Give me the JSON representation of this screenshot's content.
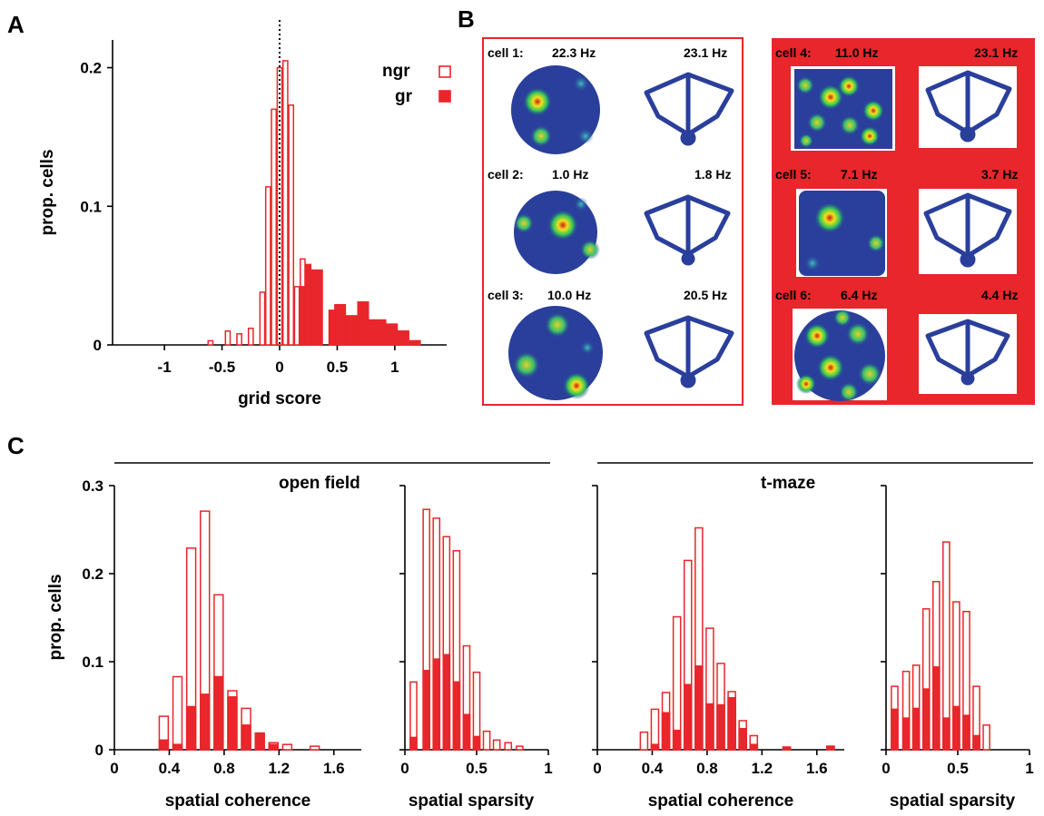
{
  "panel_labels": {
    "a": "A",
    "b": "B",
    "c": "C"
  },
  "colors": {
    "red": "#e8262b",
    "axis": "#000000",
    "map_bg": "#2a3f9b"
  },
  "chart_data": [
    {
      "id": "A",
      "type": "bar",
      "xlabel": "grid score",
      "ylabel": "prop. cells",
      "xlim": [
        -1.45,
        1.45
      ],
      "ylim": [
        0,
        0.22
      ],
      "xticks": [
        -1,
        -0.5,
        0,
        0.5,
        1
      ],
      "xtick_labels": [
        "-1",
        "-0.5",
        "0",
        "0.5",
        "1"
      ],
      "yticks": [
        0,
        0.1,
        0.2
      ],
      "ytick_labels": [
        "0",
        "0.1",
        "0.2"
      ],
      "bin_width": 0.05,
      "dotted_line_x": 0,
      "legend": {
        "placement": "top-right",
        "entries": [
          "ngr",
          "gr"
        ]
      },
      "series": [
        {
          "name": "ngr",
          "fill": "open",
          "x": [
            -0.6,
            -0.45,
            -0.35,
            -0.25,
            -0.15,
            -0.1,
            -0.05,
            0.0,
            0.05,
            0.1,
            0.15,
            0.2
          ],
          "values": [
            0.003,
            0.01,
            0.008,
            0.012,
            0.038,
            0.114,
            0.17,
            0.2,
            0.205,
            0.173,
            0.042,
            0.062
          ]
        },
        {
          "name": "gr",
          "fill": "solid",
          "x": [
            0.1,
            0.15,
            0.2,
            0.25,
            0.3,
            0.35,
            0.4,
            0.45,
            0.5,
            0.55,
            0.6,
            0.65,
            0.7,
            0.75,
            0.8,
            0.85,
            0.9,
            0.95,
            1.0,
            1.05,
            1.1,
            1.15,
            1.2
          ],
          "values": [
            0.0,
            0.0,
            0.042,
            0.058,
            0.054,
            0.054,
            0.0,
            0.025,
            0.029,
            0.029,
            0.021,
            0.021,
            0.031,
            0.031,
            0.018,
            0.018,
            0.018,
            0.015,
            0.015,
            0.01,
            0.01,
            0.003,
            0.003
          ]
        }
      ]
    },
    {
      "id": "C1",
      "type": "bar",
      "group_title": "open field",
      "xlabel": "spatial coherence",
      "ylabel": "prop. cells",
      "xlim": [
        0,
        1.8
      ],
      "ylim": [
        0,
        0.3
      ],
      "xticks": [
        0,
        0.4,
        0.8,
        1.2,
        1.6
      ],
      "xtick_labels": [
        "0",
        "0.4",
        "0.8",
        "1.2",
        "1.6"
      ],
      "yticks": [
        0,
        0.1,
        0.2,
        0.3
      ],
      "ytick_labels": [
        "0",
        "0.1",
        "0.2",
        "0.3"
      ],
      "bin_width": 0.08,
      "x": [
        0.36,
        0.46,
        0.56,
        0.66,
        0.76,
        0.86,
        0.96,
        1.06,
        1.16,
        1.26,
        1.46
      ],
      "total": [
        0.038,
        0.083,
        0.229,
        0.271,
        0.176,
        0.067,
        0.047,
        0.019,
        0.008,
        0.006,
        0.004
      ],
      "gr": [
        0.011,
        0.006,
        0.049,
        0.063,
        0.083,
        0.06,
        0.028,
        0.018,
        0.006,
        0.0,
        0.0
      ]
    },
    {
      "id": "C2",
      "type": "bar",
      "group_title": "open field",
      "xlabel": "spatial sparsity",
      "ylim": [
        0,
        0.3
      ],
      "xlim": [
        0,
        1
      ],
      "xticks": [
        0,
        0.5,
        1
      ],
      "xtick_labels": [
        "0",
        "0.5",
        "1"
      ],
      "yticks": [
        0,
        0.1,
        0.2,
        0.3
      ],
      "bin_width": 0.055,
      "x": [
        0.06,
        0.15,
        0.22,
        0.29,
        0.36,
        0.43,
        0.5,
        0.57,
        0.64,
        0.72,
        0.8
      ],
      "total": [
        0.077,
        0.273,
        0.263,
        0.242,
        0.226,
        0.118,
        0.088,
        0.021,
        0.011,
        0.008,
        0.004
      ],
      "gr": [
        0.014,
        0.09,
        0.103,
        0.108,
        0.077,
        0.04,
        0.015,
        0.0,
        0.0,
        0.0,
        0.0
      ]
    },
    {
      "id": "C3",
      "type": "bar",
      "group_title": "t-maze",
      "xlabel": "spatial coherence",
      "ylabel": "",
      "xlim": [
        0,
        1.8
      ],
      "ylim": [
        0,
        0.3
      ],
      "xticks": [
        0,
        0.4,
        0.8,
        1.2,
        1.6
      ],
      "xtick_labels": [
        "0",
        "0.4",
        "0.8",
        "1.2",
        "1.6"
      ],
      "yticks": [
        0,
        0.1,
        0.2,
        0.3
      ],
      "bin_width": 0.065,
      "x": [
        0.26,
        0.34,
        0.42,
        0.5,
        0.58,
        0.66,
        0.74,
        0.82,
        0.9,
        0.98,
        1.06,
        1.14,
        1.38,
        1.7
      ],
      "total": [
        0.0,
        0.02,
        0.046,
        0.065,
        0.151,
        0.215,
        0.252,
        0.138,
        0.098,
        0.066,
        0.033,
        0.016,
        0.003,
        0.004
      ],
      "gr": [
        0.0,
        0.0,
        0.006,
        0.042,
        0.022,
        0.074,
        0.095,
        0.052,
        0.051,
        0.059,
        0.024,
        0.006,
        0.003,
        0.004
      ]
    },
    {
      "id": "C4",
      "type": "bar",
      "group_title": "t-maze",
      "xlabel": "spatial sparsity",
      "xlim": [
        0,
        1
      ],
      "ylim": [
        0,
        0.3
      ],
      "xticks": [
        0,
        0.5,
        1
      ],
      "xtick_labels": [
        "0",
        "0.5",
        "1"
      ],
      "yticks": [
        0,
        0.1,
        0.2,
        0.3
      ],
      "bin_width": 0.055,
      "x": [
        0.06,
        0.14,
        0.21,
        0.28,
        0.35,
        0.42,
        0.49,
        0.56,
        0.63,
        0.7,
        0.77
      ],
      "total": [
        0.072,
        0.089,
        0.096,
        0.16,
        0.191,
        0.236,
        0.168,
        0.157,
        0.072,
        0.028,
        0.0
      ],
      "gr": [
        0.046,
        0.036,
        0.047,
        0.069,
        0.094,
        0.036,
        0.049,
        0.039,
        0.016,
        0.0,
        0.0
      ]
    }
  ],
  "legend": {
    "ngr": "ngr",
    "gr": "gr"
  },
  "group_titles": {
    "open_field": "open field",
    "t_maze": "t-maze"
  },
  "cells": [
    {
      "label": "cell 1:",
      "rate_of": "22.3 Hz",
      "rate_tm": "23.1 Hz"
    },
    {
      "label": "cell 2:",
      "rate_of": "1.0 Hz",
      "rate_tm": "1.8 Hz"
    },
    {
      "label": "cell 3:",
      "rate_of": "10.0 Hz",
      "rate_tm": "20.5 Hz"
    },
    {
      "label": "cell 4:",
      "rate_of": "11.0 Hz",
      "rate_tm": "23.1 Hz"
    },
    {
      "label": "cell 5:",
      "rate_of": "7.1 Hz",
      "rate_tm": "3.7 Hz"
    },
    {
      "label": "cell 6:",
      "rate_of": "6.4 Hz",
      "rate_tm": "4.4 Hz"
    }
  ]
}
